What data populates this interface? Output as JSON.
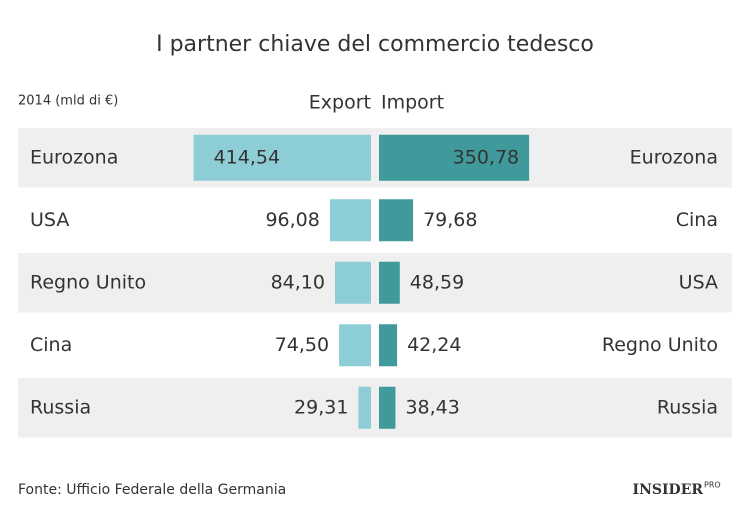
{
  "chart_data": {
    "type": "butterfly",
    "title": "I partner chiave del commercio tedesco",
    "subtitle": "2014 (mld di €)",
    "series": [
      {
        "name": "Export",
        "color": "#8ccdd6",
        "legend_color": "#4fb6c6",
        "categories": [
          "Eurozona",
          "USA",
          "Regno Unito",
          "Cina",
          "Russia"
        ],
        "values": [
          414.54,
          96.08,
          84.1,
          74.5,
          29.31
        ],
        "value_labels": [
          "414,54",
          "96,08",
          "84,10",
          "74,50",
          "29,31"
        ]
      },
      {
        "name": "Import",
        "color": "#409a9c",
        "legend_color": "#2f8b8e",
        "categories": [
          "Eurozona",
          "Cina",
          "USA",
          "Regno Unito",
          "Russia"
        ],
        "values": [
          350.78,
          79.68,
          48.59,
          42.24,
          38.43
        ],
        "value_labels": [
          "350,78",
          "79,68",
          "48,59",
          "42,24",
          "38,43"
        ]
      }
    ],
    "source": "Fonte: Ufficio Federale della Germania",
    "brand": "INSIDER",
    "brand_suffix": "PRO"
  }
}
